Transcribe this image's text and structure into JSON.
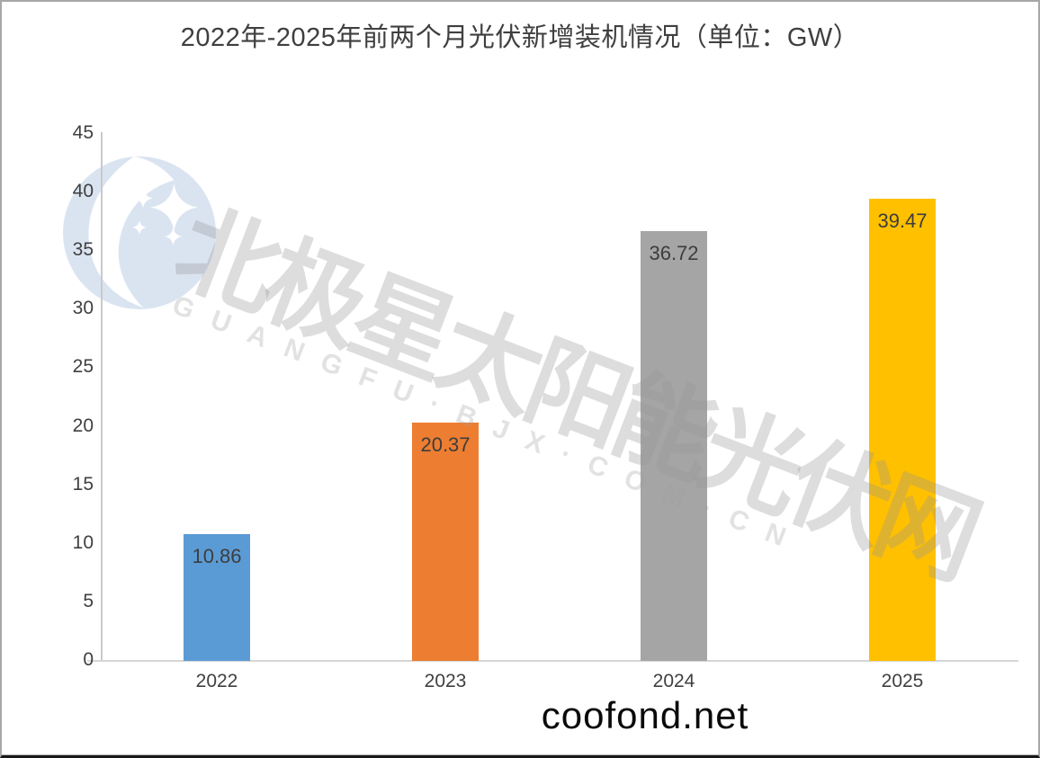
{
  "title": "2022年-2025年前两个月光伏新增装机情况（单位：GW）",
  "watermark": {
    "logo_icon": "moon-stars-logo",
    "text_cn": "北极星太阳能光伏网",
    "text_en": "GUANGFU·BJX·COM·CN"
  },
  "footer": {
    "site": "coofond.net"
  },
  "chart_data": {
    "type": "bar",
    "title": "2022年-2025年前两个月光伏新增装机情况（单位：GW）",
    "unit": "GW",
    "categories": [
      "2022",
      "2023",
      "2024",
      "2025"
    ],
    "values": [
      10.86,
      20.37,
      36.72,
      39.47
    ],
    "bar_colors": [
      "#5B9BD5",
      "#ED7D31",
      "#A5A5A5",
      "#FFC000"
    ],
    "xlabel": "",
    "ylabel": "",
    "ylim": [
      0,
      45
    ],
    "ytick_interval": 5,
    "yticks": [
      45,
      40,
      35,
      30,
      25,
      20,
      15,
      10,
      5,
      0
    ],
    "grid": false,
    "legend": false,
    "value_label_position": "inside-top"
  },
  "colors": {
    "background": "#FFFFFF",
    "frame_border": "#A8A8A8",
    "frame_bottom_border": "#191919",
    "axis_line": "#C9C9C9",
    "text": "#404040",
    "watermark_gray": "#E3E3E3",
    "logo_blue": "#DAE4F1",
    "footer_text": "#0A0A0A"
  }
}
